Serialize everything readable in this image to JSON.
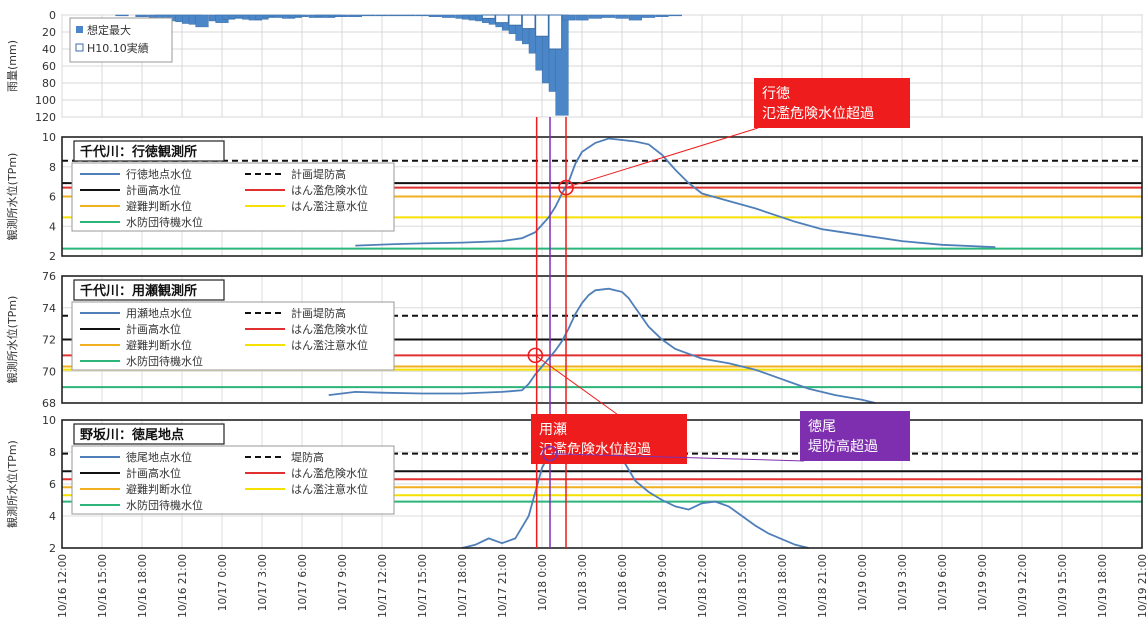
{
  "chart_data": {
    "type": "line",
    "x_ticks": [
      "10/16 12:00",
      "10/16 15:00",
      "10/16 18:00",
      "10/16 21:00",
      "10/17 0:00",
      "10/17 3:00",
      "10/17 6:00",
      "10/17 9:00",
      "10/17 12:00",
      "10/17 15:00",
      "10/17 18:00",
      "10/17 21:00",
      "10/18 0:00",
      "10/18 3:00",
      "10/18 6:00",
      "10/18 9:00",
      "10/18 12:00",
      "10/18 15:00",
      "10/18 18:00",
      "10/18 21:00",
      "10/19 0:00",
      "10/19 3:00",
      "10/19 6:00",
      "10/19 9:00",
      "10/19 12:00",
      "10/19 15:00",
      "10/19 18:00",
      "10/19 21:00"
    ],
    "rain": {
      "ylabel": "雨量(mm)",
      "yticks": [
        0,
        20,
        40,
        60,
        80,
        100,
        120
      ],
      "ylim": [
        0,
        120
      ],
      "legend": [
        "想定最大",
        "H10.10実績"
      ],
      "max_bars": [
        [
          4.5,
          1
        ],
        [
          6,
          2
        ],
        [
          7,
          3
        ],
        [
          7.5,
          4
        ],
        [
          8,
          5
        ],
        [
          8.5,
          7
        ],
        [
          9,
          8
        ],
        [
          9.5,
          10
        ],
        [
          10,
          11
        ],
        [
          10.5,
          14
        ],
        [
          11.5,
          7
        ],
        [
          12,
          9
        ],
        [
          12.5,
          5
        ],
        [
          13,
          4
        ],
        [
          13.5,
          3
        ],
        [
          14,
          5
        ],
        [
          14.5,
          6
        ],
        [
          15,
          5
        ],
        [
          15.5,
          3
        ],
        [
          16,
          2
        ],
        [
          16.5,
          3
        ],
        [
          17,
          4
        ],
        [
          17.5,
          3
        ],
        [
          18,
          2
        ],
        [
          19,
          3
        ],
        [
          19.5,
          2
        ],
        [
          20,
          3
        ],
        [
          20.5,
          2
        ],
        [
          21,
          2
        ],
        [
          22,
          2
        ],
        [
          23,
          1
        ],
        [
          24,
          1
        ],
        [
          25,
          1
        ],
        [
          26,
          1
        ],
        [
          27,
          1
        ],
        [
          28,
          2
        ],
        [
          29,
          3
        ],
        [
          30,
          4
        ],
        [
          30.5,
          5
        ],
        [
          31,
          6
        ],
        [
          31.5,
          7
        ],
        [
          32,
          9
        ],
        [
          32.5,
          11
        ],
        [
          33,
          14
        ],
        [
          33.5,
          18
        ],
        [
          34,
          22
        ],
        [
          34.5,
          30
        ],
        [
          35,
          34
        ],
        [
          35.5,
          45
        ],
        [
          36,
          65
        ],
        [
          36.5,
          80
        ],
        [
          37,
          90
        ],
        [
          37.5,
          118
        ],
        [
          38,
          6
        ],
        [
          39,
          6
        ],
        [
          40,
          4
        ],
        [
          41,
          3
        ],
        [
          42,
          4
        ],
        [
          43,
          6
        ],
        [
          44,
          3
        ],
        [
          45,
          2
        ],
        [
          46,
          1
        ]
      ],
      "actual_bars": [
        [
          32,
          4
        ],
        [
          33,
          9
        ],
        [
          34,
          12
        ],
        [
          35,
          16
        ],
        [
          36,
          25
        ],
        [
          37,
          40
        ]
      ]
    },
    "panels": [
      {
        "title": "千代川：行徳観測所",
        "ylabel": "観測所水位(TPm)",
        "yticks": [
          2,
          4,
          6,
          8,
          10
        ],
        "ylim": [
          2,
          10
        ],
        "series": [
          {
            "name": "行徳地点水位",
            "color": "#4f7fb8",
            "style": "solid",
            "points": [
              [
                22,
                2.7
              ],
              [
                25,
                2.8
              ],
              [
                27,
                2.85
              ],
              [
                30,
                2.9
              ],
              [
                33,
                3.0
              ],
              [
                34.5,
                3.2
              ],
              [
                35.5,
                3.6
              ],
              [
                36.5,
                4.6
              ],
              [
                37,
                5.3
              ],
              [
                37.5,
                6.2
              ],
              [
                38,
                7.0
              ],
              [
                38.5,
                8.2
              ],
              [
                39,
                9.0
              ],
              [
                40,
                9.6
              ],
              [
                41,
                9.9
              ],
              [
                43,
                9.7
              ],
              [
                44,
                9.5
              ],
              [
                45,
                8.8
              ],
              [
                46,
                7.8
              ],
              [
                47,
                6.9
              ],
              [
                48,
                6.2
              ],
              [
                50,
                5.7
              ],
              [
                52,
                5.2
              ],
              [
                55,
                4.3
              ],
              [
                57,
                3.8
              ],
              [
                60,
                3.4
              ],
              [
                63,
                3.0
              ],
              [
                66,
                2.75
              ],
              [
                70,
                2.6
              ]
            ]
          },
          {
            "name": "計画堤防高",
            "color": "#111111",
            "style": "dash",
            "value": 8.4
          },
          {
            "name": "計画高水位",
            "color": "#111111",
            "style": "solid",
            "value": 6.9
          },
          {
            "name": "はん濫危険水位",
            "color": "#e03030",
            "style": "solid",
            "value": 6.6
          },
          {
            "name": "避難判断水位",
            "color": "#f0b020",
            "style": "solid",
            "value": 6.0
          },
          {
            "name": "はん濫注意水位",
            "color": "#f5e000",
            "style": "solid",
            "value": 4.6
          },
          {
            "name": "水防団待機水位",
            "color": "#2cb57a",
            "style": "solid",
            "value": 2.5
          }
        ]
      },
      {
        "title": "千代川：用瀬観測所",
        "ylabel": "観測所水位(TPm)",
        "yticks": [
          68,
          70,
          72,
          74,
          76
        ],
        "ylim": [
          68,
          76
        ],
        "series": [
          {
            "name": "用瀬地点水位",
            "color": "#4f7fb8",
            "style": "solid",
            "points": [
              [
                20,
                68.5
              ],
              [
                22,
                68.7
              ],
              [
                24,
                68.65
              ],
              [
                27,
                68.6
              ],
              [
                30,
                68.6
              ],
              [
                33,
                68.7
              ],
              [
                34.5,
                68.8
              ],
              [
                35,
                69.2
              ],
              [
                35.5,
                69.8
              ],
              [
                36,
                70.3
              ],
              [
                36.5,
                70.8
              ],
              [
                37,
                71.3
              ],
              [
                37.5,
                71.9
              ],
              [
                38,
                72.7
              ],
              [
                38.5,
                73.6
              ],
              [
                39,
                74.3
              ],
              [
                39.5,
                74.8
              ],
              [
                40,
                75.1
              ],
              [
                41,
                75.2
              ],
              [
                42,
                75.0
              ],
              [
                42.5,
                74.6
              ],
              [
                43,
                74.0
              ],
              [
                44,
                72.8
              ],
              [
                45,
                72.0
              ],
              [
                46,
                71.4
              ],
              [
                47,
                71.1
              ],
              [
                48,
                70.8
              ],
              [
                50,
                70.5
              ],
              [
                52,
                70.1
              ],
              [
                54,
                69.5
              ],
              [
                56,
                68.9
              ],
              [
                58,
                68.5
              ],
              [
                60,
                68.2
              ],
              [
                61,
                68.0
              ]
            ]
          },
          {
            "name": "計画堤防高",
            "color": "#111111",
            "style": "dash",
            "value": 73.5
          },
          {
            "name": "計画高水位",
            "color": "#111111",
            "style": "solid",
            "value": 72.0
          },
          {
            "name": "はん濫危険水位",
            "color": "#e03030",
            "style": "solid",
            "value": 71.0
          },
          {
            "name": "避難判断水位",
            "color": "#f0b020",
            "style": "solid",
            "value": 70.3
          },
          {
            "name": "はん濫注意水位",
            "color": "#f5e000",
            "style": "solid",
            "value": 70.1
          },
          {
            "name": "水防団待機水位",
            "color": "#2cb57a",
            "style": "solid",
            "value": 69.0
          }
        ]
      },
      {
        "title": "野坂川：徳尾地点",
        "ylabel": "観測所水位(TPm)",
        "yticks": [
          2,
          4,
          6,
          8,
          10
        ],
        "ylim": [
          2,
          10
        ],
        "series": [
          {
            "name": "徳尾地点水位",
            "color": "#4f7fb8",
            "style": "solid",
            "points": [
              [
                30,
                2.0
              ],
              [
                31,
                2.2
              ],
              [
                32,
                2.6
              ],
              [
                33,
                2.3
              ],
              [
                34,
                2.6
              ],
              [
                35,
                4.0
              ],
              [
                35.5,
                5.5
              ],
              [
                36,
                7.0
              ],
              [
                36.5,
                7.8
              ],
              [
                37,
                8.2
              ],
              [
                38,
                8.4
              ],
              [
                39,
                8.45
              ],
              [
                40,
                8.5
              ],
              [
                41,
                8.4
              ],
              [
                42,
                7.6
              ],
              [
                43,
                6.2
              ],
              [
                44,
                5.5
              ],
              [
                45,
                5.0
              ],
              [
                46,
                4.6
              ],
              [
                47,
                4.4
              ],
              [
                48,
                4.8
              ],
              [
                49,
                4.9
              ],
              [
                50,
                4.6
              ],
              [
                51,
                4.0
              ],
              [
                52,
                3.4
              ],
              [
                53,
                2.9
              ],
              [
                55,
                2.2
              ],
              [
                56,
                2.0
              ]
            ]
          },
          {
            "name": "堤防高",
            "color": "#111111",
            "style": "dash",
            "value": 7.9
          },
          {
            "name": "計画高水位",
            "color": "#111111",
            "style": "solid",
            "value": 6.8
          },
          {
            "name": "はん濫危険水位",
            "color": "#e03030",
            "style": "solid",
            "value": 6.3
          },
          {
            "name": "避難判断水位",
            "color": "#f0b020",
            "style": "solid",
            "value": 5.8
          },
          {
            "name": "はん濫注意水位",
            "color": "#f5e000",
            "style": "solid",
            "value": 5.3
          },
          {
            "name": "水防団待機水位",
            "color": "#2cb57a",
            "style": "solid",
            "value": 4.9
          }
        ]
      }
    ],
    "callouts": [
      {
        "lines": [
          "行徳",
          "氾濫危険水位超過"
        ],
        "color": "#ee1c1c",
        "panel": 0,
        "x": 37.8,
        "y": 6.6
      },
      {
        "lines": [
          "用瀬",
          "氾濫危険水位超過"
        ],
        "color": "#ee1c1c",
        "panel": 1,
        "x": 35.5,
        "y": 71.0
      },
      {
        "lines": [
          "徳尾",
          "堤防高超過"
        ],
        "color": "#7e2fb0",
        "panel": 2,
        "x": 36.6,
        "y": 7.9
      }
    ],
    "vlines": [
      {
        "x": 35.6,
        "color": "#ee1c1c"
      },
      {
        "x": 37.8,
        "color": "#ee1c1c"
      },
      {
        "x": 36.6,
        "color": "#7e2fb0"
      }
    ]
  }
}
